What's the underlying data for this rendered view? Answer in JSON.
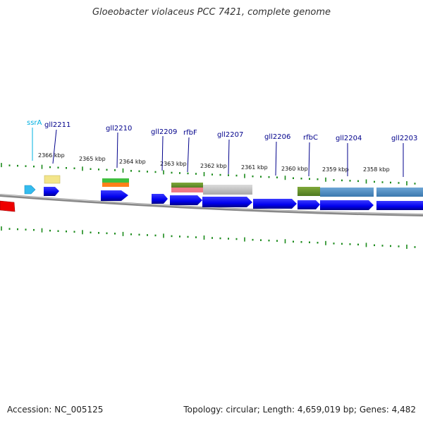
{
  "title": "Gloeobacter violaceus PCC 7421, complete genome",
  "footer": {
    "accession": "Accession: NC_005125",
    "topology": "Topology: circular; Length: 4,659,019 bp; Genes: 4,482"
  },
  "colors": {
    "tick": "#1a8a1a",
    "gene_label": "#00008b",
    "rna_label": "#00b0e0",
    "backbone": "#888888",
    "cds": "#0000ee",
    "red_feature": "#ee0000"
  },
  "scale_labels": [
    {
      "text": "2366 kbp"
    },
    {
      "text": "2365 kbp"
    },
    {
      "text": "2364 kbp"
    },
    {
      "text": "2363 kbp"
    },
    {
      "text": "2362 kbp"
    },
    {
      "text": "2361 kbp"
    },
    {
      "text": "2360 kbp"
    },
    {
      "text": "2359 kbp"
    },
    {
      "text": "2358 kbp"
    }
  ],
  "gene_labels": [
    {
      "text": "ssrA",
      "color": "#00b0e0"
    },
    {
      "text": "gll2211",
      "color": "#00008b"
    },
    {
      "text": "gll2210",
      "color": "#00008b"
    },
    {
      "text": "gll2209",
      "color": "#00008b"
    },
    {
      "text": "rfbF",
      "color": "#00008b"
    },
    {
      "text": "gll2207",
      "color": "#00008b"
    },
    {
      "text": "gll2206",
      "color": "#00008b"
    },
    {
      "text": "rfbC",
      "color": "#00008b"
    },
    {
      "text": "gll2204",
      "color": "#00008b"
    },
    {
      "text": "gll2203",
      "color": "#00008b"
    }
  ]
}
